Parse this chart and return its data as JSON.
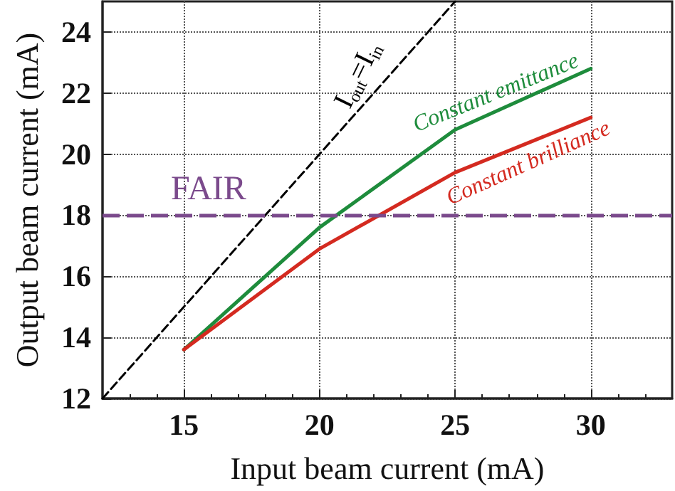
{
  "chart_data": {
    "type": "line",
    "xlabel": "Input beam current (mA)",
    "ylabel": "Output beam current (mA)",
    "xlim": [
      12,
      33
    ],
    "xticks": [
      15,
      20,
      25,
      30
    ],
    "ylim": [
      12,
      25
    ],
    "yticks": [
      12,
      14,
      16,
      18,
      20,
      22,
      24
    ],
    "grid": true,
    "marker": "none",
    "line_style": "solid",
    "series": [
      {
        "color": "#1e8c3c",
        "x": [
          15,
          20,
          25,
          30
        ],
        "values": [
          13.6,
          17.6,
          20.8,
          22.8
        ]
      },
      {
        "color": "#d42a20",
        "x": [
          15,
          20,
          25,
          30
        ],
        "values": [
          13.6,
          16.9,
          19.4,
          21.2
        ]
      },
      {
        "color": "#000000",
        "x": [
          12,
          25
        ],
        "values": [
          12,
          25
        ],
        "line_style": "dashed"
      }
    ],
    "ref_lines": [
      {
        "axis": "y",
        "value": 18,
        "label": "FAIR",
        "color": "#7b4a8c",
        "line_style": "dashed"
      }
    ],
    "annotations": [
      "I$_{out}$=I$_{in}$",
      "Constant emittance",
      "Constant brilliance"
    ]
  }
}
